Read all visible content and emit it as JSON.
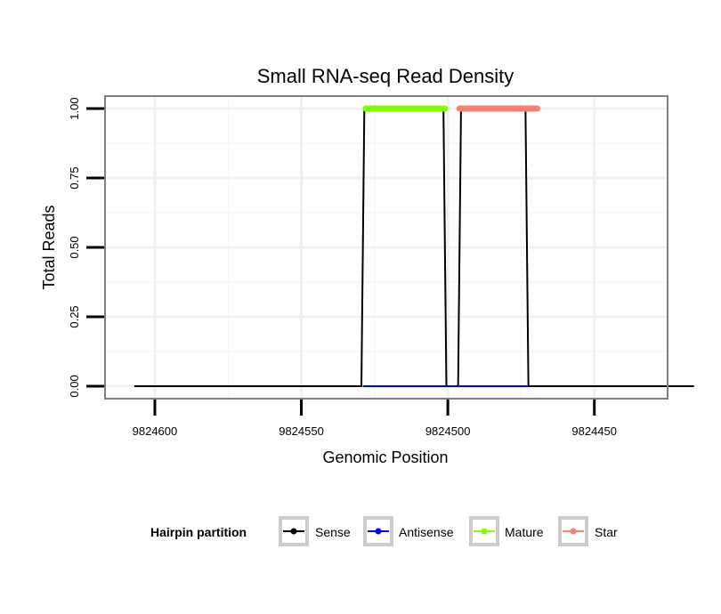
{
  "chart_data": {
    "type": "line",
    "title": "Small RNA-seq Read Density",
    "xlabel": "Genomic Position",
    "ylabel": "Total Reads",
    "x_reversed": true,
    "xlim": [
      9824617,
      9824425
    ],
    "ylim": [
      -0.045,
      1.045
    ],
    "x_ticks": [
      9824600,
      9824550,
      9824500,
      9824450
    ],
    "x_tick_labels": [
      "9824600",
      "9824550",
      "9824500",
      "9824450"
    ],
    "y_ticks": [
      0,
      0.25,
      0.5,
      0.75,
      1
    ],
    "y_tick_labels": [
      "0.00",
      "0.25",
      "0.50",
      "0.75",
      "1.00"
    ],
    "grid": true,
    "legend": {
      "title": "Hairpin partition",
      "position": "bottom",
      "entries": [
        "Sense",
        "Antisense",
        "Mature",
        "Star"
      ]
    },
    "series": [
      {
        "name": "Sense",
        "color": "#000000",
        "x": [
          9824607,
          9824529.5,
          9824528.5,
          9824501.5,
          9824500.5,
          9824496.5,
          9824495.5,
          9824473.5,
          9824472.5,
          9824416
        ],
        "y": [
          0,
          0,
          1,
          1,
          0,
          0,
          1,
          1,
          0,
          0
        ]
      },
      {
        "name": "Antisense",
        "color": "#0000ff",
        "x": [
          9824529,
          9824472.5
        ],
        "y": [
          0,
          0
        ]
      },
      {
        "name": "Mature",
        "color": "#7fff00",
        "x": [
          9824528,
          9824501
        ],
        "y": [
          1,
          1
        ]
      },
      {
        "name": "Star",
        "color": "#fa8072",
        "x": [
          9824496,
          9824469.5
        ],
        "y": [
          1,
          1
        ]
      }
    ]
  }
}
